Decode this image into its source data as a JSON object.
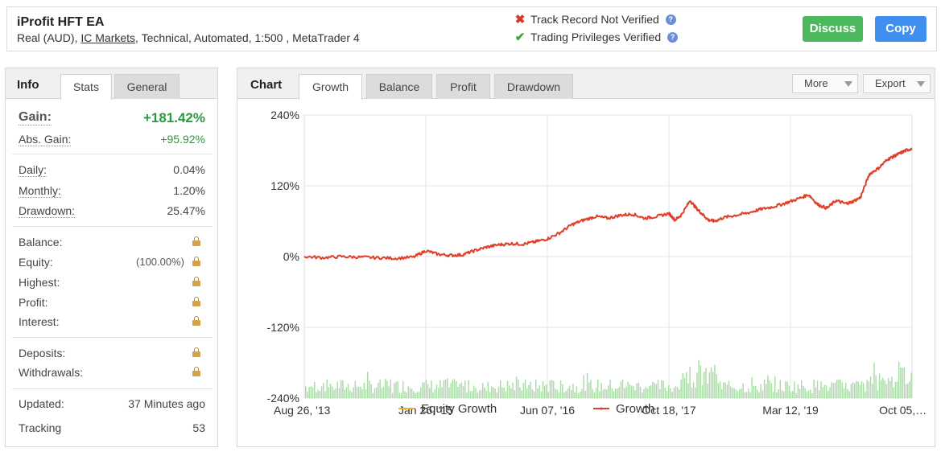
{
  "header": {
    "title": "iProfit HFT EA",
    "subtitle_pre": "Real (AUD), ",
    "broker": "IC Markets",
    "subtitle_post": ", Technical, Automated, 1:500 , MetaTrader 4",
    "track_record": "Track Record Not Verified",
    "trading_privileges": "Trading Privileges Verified",
    "discuss_label": "Discuss",
    "copy_label": "Copy",
    "colors": {
      "discuss": "#4cb85e",
      "copy": "#3f8ef0",
      "not_verified": "#d9372b",
      "verified": "#3aa53a"
    }
  },
  "left_panel": {
    "heading": "Info",
    "tabs": [
      {
        "label": "Stats",
        "active": true
      },
      {
        "label": "General",
        "active": false
      }
    ],
    "gain": {
      "label": "Gain:",
      "value": "+181.42%"
    },
    "abs_gain": {
      "label": "Abs. Gain:",
      "value": "+95.92%"
    },
    "daily": {
      "label": "Daily:",
      "value": "0.04%"
    },
    "monthly": {
      "label": "Monthly:",
      "value": "1.20%"
    },
    "drawdown": {
      "label": "Drawdown:",
      "value": "25.47%"
    },
    "balance": {
      "label": "Balance:"
    },
    "equity": {
      "label": "Equity:",
      "value": "(100.00%)"
    },
    "highest": {
      "label": "Highest:"
    },
    "profit": {
      "label": "Profit:"
    },
    "interest": {
      "label": "Interest:"
    },
    "deposits": {
      "label": "Deposits:"
    },
    "withdrawals": {
      "label": "Withdrawals:"
    },
    "updated": {
      "label": "Updated:",
      "value": "37 Minutes ago"
    },
    "tracking": {
      "label": "Tracking",
      "value": "53"
    }
  },
  "right_panel": {
    "heading": "Chart",
    "tabs": [
      {
        "label": "Growth",
        "active": true
      },
      {
        "label": "Balance",
        "active": false
      },
      {
        "label": "Profit",
        "active": false
      },
      {
        "label": "Drawdown",
        "active": false
      }
    ],
    "more_label": "More",
    "export_label": "Export"
  },
  "chart_data": {
    "type": "line",
    "ylim": [
      -240,
      240
    ],
    "y_ticks": [
      "240%",
      "120%",
      "0%",
      "-120%",
      "-240%"
    ],
    "x_ticks": [
      "Aug 26, '13",
      "Jan 26, '15",
      "Jun 07, '16",
      "Oct 18, '17",
      "Mar 12, '19",
      "Oct 05,…"
    ],
    "grid": true,
    "legend_position": "bottom",
    "series": [
      {
        "name": "Equity Growth",
        "color": "#f0b12a",
        "values": []
      },
      {
        "name": "Growth",
        "color": "#e0402a",
        "x": [
          0,
          0.03,
          0.06,
          0.09,
          0.12,
          0.15,
          0.18,
          0.2,
          0.22,
          0.24,
          0.26,
          0.28,
          0.3,
          0.32,
          0.34,
          0.36,
          0.38,
          0.4,
          0.42,
          0.44,
          0.46,
          0.48,
          0.5,
          0.52,
          0.54,
          0.56,
          0.58,
          0.6,
          0.61,
          0.62,
          0.635,
          0.645,
          0.655,
          0.665,
          0.675,
          0.69,
          0.71,
          0.73,
          0.75,
          0.77,
          0.79,
          0.81,
          0.83,
          0.845,
          0.86,
          0.875,
          0.89,
          0.9,
          0.915,
          0.93,
          0.945,
          0.96,
          0.97,
          0.98,
          0.99,
          1.0
        ],
        "values": [
          0,
          -2,
          0,
          -1,
          -2,
          -3,
          -1,
          10,
          4,
          2,
          3,
          10,
          16,
          20,
          22,
          21,
          25,
          30,
          40,
          54,
          62,
          68,
          65,
          70,
          72,
          65,
          68,
          73,
          62,
          70,
          95,
          82,
          72,
          62,
          60,
          66,
          70,
          74,
          80,
          84,
          90,
          97,
          105,
          88,
          82,
          95,
          90,
          92,
          100,
          140,
          150,
          165,
          170,
          175,
          180,
          183
        ]
      }
    ],
    "volume_bars": "green histogram along bottom axis"
  }
}
